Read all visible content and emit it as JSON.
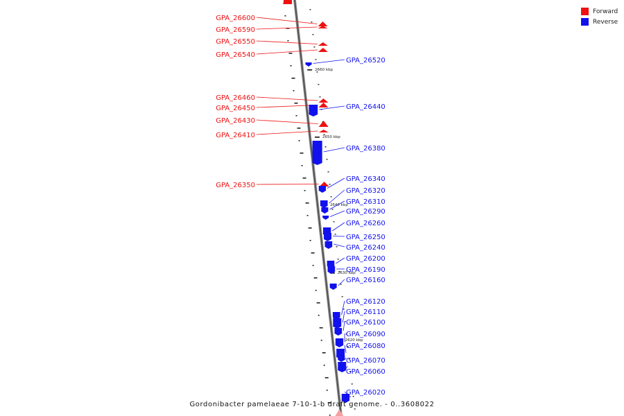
{
  "legend": {
    "forward_label": "Forward",
    "reverse_label": "Reverse",
    "forward_color": "#ee1111",
    "reverse_color": "#1111ee"
  },
  "caption": "Gordonibacter pamelaeae 7-10-1-b draft genome. - 0..3608022",
  "scale_marks": [
    "2660 kbp",
    "2650 kbp",
    "2640 kbp",
    "2630 kbp",
    "2620 kbp"
  ],
  "forward_genes": [
    "GPA_26600",
    "GPA_26590",
    "GPA_26550",
    "GPA_26540",
    "GPA_26460",
    "GPA_26450",
    "GPA_26430",
    "GPA_26410",
    "GPA_26350"
  ],
  "reverse_genes": [
    "GPA_26520",
    "GPA_26440",
    "GPA_26380",
    "GPA_26340",
    "GPA_26320",
    "GPA_26310",
    "GPA_26290",
    "GPA_26260",
    "GPA_26250",
    "GPA_26240",
    "GPA_26200",
    "GPA_26190",
    "GPA_26160",
    "GPA_26120",
    "GPA_26110",
    "GPA_26100",
    "GPA_26090",
    "GPA_26080",
    "GPA_26070",
    "GPA_26060",
    "GPA_26020"
  ]
}
